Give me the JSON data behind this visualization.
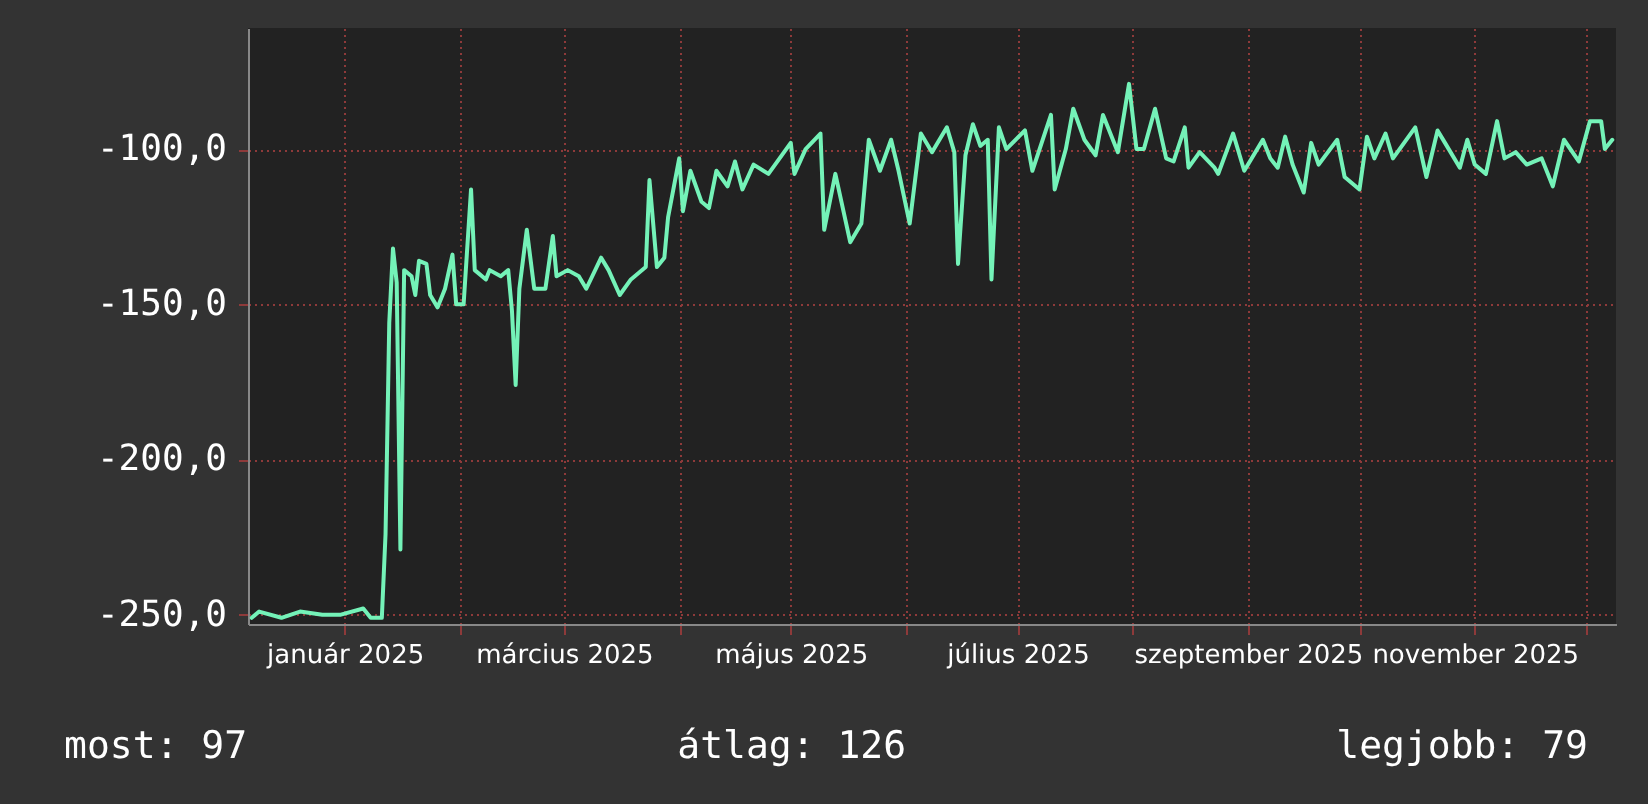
{
  "chart_data": {
    "type": "line",
    "x": [
      "2024-12-07",
      "2024-12-09",
      "2024-12-15",
      "2024-12-20",
      "2024-12-26",
      "2024-12-31",
      "2025-01-06",
      "2025-01-08",
      "2025-01-11",
      "2025-01-12",
      "2025-01-13",
      "2025-01-14",
      "2025-01-15",
      "2025-01-16",
      "2025-01-17",
      "2025-01-19",
      "2025-01-20",
      "2025-01-21",
      "2025-01-23",
      "2025-01-24",
      "2025-01-26",
      "2025-01-28",
      "2025-01-30",
      "2025-01-31",
      "2025-02-02",
      "2025-02-04",
      "2025-02-05",
      "2025-02-08",
      "2025-02-09",
      "2025-02-12",
      "2025-02-14",
      "2025-02-15",
      "2025-02-16",
      "2025-02-17",
      "2025-02-19",
      "2025-02-21",
      "2025-02-24",
      "2025-02-26",
      "2025-02-27",
      "2025-03-02",
      "2025-03-05",
      "2025-03-07",
      "2025-03-11",
      "2025-03-13",
      "2025-03-16",
      "2025-03-19",
      "2025-03-23",
      "2025-03-24",
      "2025-03-26",
      "2025-03-28",
      "2025-03-29",
      "2025-04-01",
      "2025-04-02",
      "2025-04-04",
      "2025-04-07",
      "2025-04-09",
      "2025-04-11",
      "2025-04-14",
      "2025-04-16",
      "2025-04-18",
      "2025-04-21",
      "2025-04-25",
      "2025-05-01",
      "2025-05-02",
      "2025-05-05",
      "2025-05-09",
      "2025-05-10",
      "2025-05-13",
      "2025-05-17",
      "2025-05-20",
      "2025-05-22",
      "2025-05-25",
      "2025-05-28",
      "2025-05-30",
      "2025-06-02",
      "2025-06-05",
      "2025-06-08",
      "2025-06-12",
      "2025-06-14",
      "2025-06-15",
      "2025-06-17",
      "2025-06-19",
      "2025-06-21",
      "2025-06-23",
      "2025-06-24",
      "2025-06-26",
      "2025-06-28",
      "2025-07-03",
      "2025-07-05",
      "2025-07-10",
      "2025-07-11",
      "2025-07-14",
      "2025-07-16",
      "2025-07-19",
      "2025-07-22",
      "2025-07-24",
      "2025-07-28",
      "2025-07-31",
      "2025-08-02",
      "2025-08-04",
      "2025-08-07",
      "2025-08-10",
      "2025-08-12",
      "2025-08-15",
      "2025-08-16",
      "2025-08-19",
      "2025-08-23",
      "2025-08-24",
      "2025-08-28",
      "2025-08-31",
      "2025-09-05",
      "2025-09-07",
      "2025-09-09",
      "2025-09-11",
      "2025-09-13",
      "2025-09-16",
      "2025-09-18",
      "2025-09-20",
      "2025-09-25",
      "2025-09-27",
      "2025-10-01",
      "2025-10-03",
      "2025-10-05",
      "2025-10-08",
      "2025-10-10",
      "2025-10-16",
      "2025-10-19",
      "2025-10-22",
      "2025-10-24",
      "2025-10-28",
      "2025-10-30",
      "2025-11-01",
      "2025-11-04",
      "2025-11-07",
      "2025-11-09",
      "2025-11-12",
      "2025-11-15",
      "2025-11-19",
      "2025-11-22",
      "2025-11-25",
      "2025-11-29",
      "2025-12-02",
      "2025-12-05",
      "2025-12-06",
      "2025-12-08"
    ],
    "series": [
      {
        "color": "#74f2b8",
        "values": [
          -251,
          -249,
          -251,
          -249,
          -250,
          -250,
          -248,
          -251,
          -251,
          -224,
          -156,
          -132,
          -143,
          -229,
          -139,
          -141,
          -147,
          -136,
          -137,
          -147,
          -151,
          -145,
          -134,
          -150,
          -150,
          -113,
          -139,
          -142,
          -139,
          -141,
          -139,
          -152,
          -176,
          -145,
          -126,
          -145,
          -145,
          -128,
          -141,
          -139,
          -141,
          -145,
          -135,
          -139,
          -147,
          -142,
          -138,
          -110,
          -138,
          -135,
          -122,
          -103,
          -120,
          -107,
          -117,
          -119,
          -107,
          -112,
          -104,
          -113,
          -105,
          -108,
          -98,
          -108,
          -100,
          -95,
          -126,
          -108,
          -130,
          -124,
          -97,
          -107,
          -97,
          -107,
          -124,
          -95,
          -101,
          -93,
          -101,
          -137,
          -102,
          -92,
          -99,
          -97,
          -142,
          -93,
          -100,
          -94,
          -107,
          -89,
          -113,
          -100,
          -87,
          -97,
          -102,
          -89,
          -101,
          -79,
          -100,
          -100,
          -87,
          -103,
          -104,
          -93,
          -106,
          -101,
          -106,
          -108,
          -95,
          -107,
          -97,
          -103,
          -106,
          -96,
          -105,
          -114,
          -98,
          -105,
          -97,
          -109,
          -113,
          -96,
          -103,
          -95,
          -103,
          -93,
          -109,
          -94,
          -98,
          -106,
          -97,
          -105,
          -108,
          -91,
          -103,
          -101,
          -105,
          -103,
          -112,
          -97,
          -104,
          -91,
          -91,
          -100,
          -97
        ]
      }
    ],
    "xlim": [
      "2024-12-06",
      "2025-12-09"
    ],
    "xticks": [
      {
        "value": "2025-01-01",
        "label": "január 2025"
      },
      {
        "value": "2025-02-01",
        "label": null
      },
      {
        "value": "2025-03-01",
        "label": "március 2025"
      },
      {
        "value": "2025-04-01",
        "label": null
      },
      {
        "value": "2025-05-01",
        "label": "május 2025"
      },
      {
        "value": "2025-06-01",
        "label": null
      },
      {
        "value": "2025-07-01",
        "label": "július 2025"
      },
      {
        "value": "2025-08-01",
        "label": null
      },
      {
        "value": "2025-09-01",
        "label": "szeptember 2025"
      },
      {
        "value": "2025-10-01",
        "label": null
      },
      {
        "value": "2025-11-01",
        "label": "november 2025"
      },
      {
        "value": "2025-12-01",
        "label": null
      }
    ],
    "ylim": [
      -253,
      -61
    ],
    "yticks": [
      {
        "value": -250,
        "label": "-250,0"
      },
      {
        "value": -200,
        "label": "-200,0"
      },
      {
        "value": -150,
        "label": "-150,0"
      },
      {
        "value": -100,
        "label": "-100,0"
      }
    ],
    "grid": true,
    "annotations": [
      "most: 97",
      "átlag: 126",
      "legjobb: 79"
    ]
  }
}
